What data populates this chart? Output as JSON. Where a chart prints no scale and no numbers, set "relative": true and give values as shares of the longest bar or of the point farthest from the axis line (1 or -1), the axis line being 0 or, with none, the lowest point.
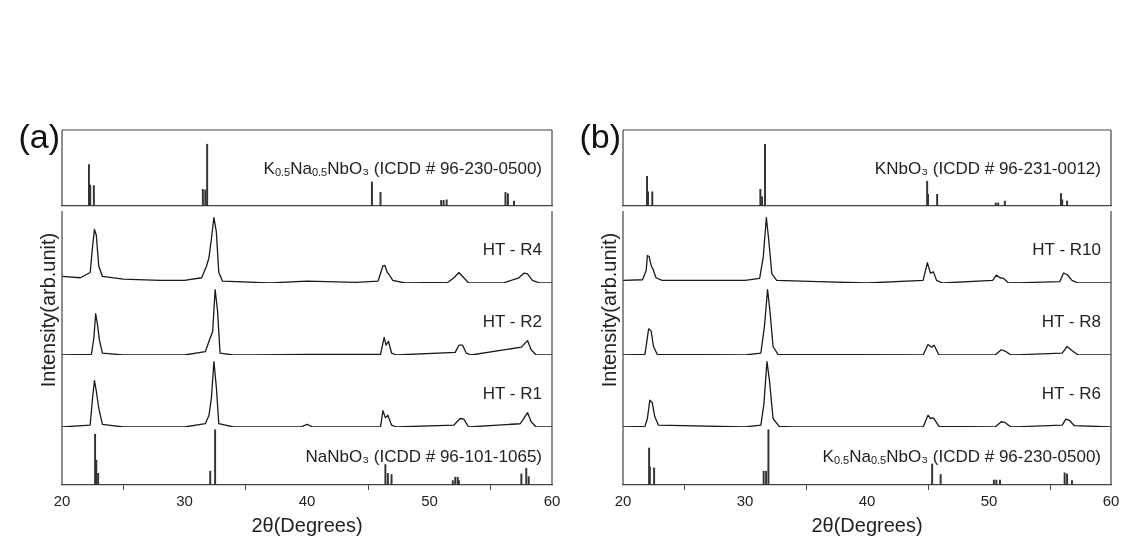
{
  "chart_data": [
    {
      "type": "bar",
      "title": "(a)",
      "relative": true,
      "xlim": [
        20,
        60
      ],
      "tick_labels": false,
      "x": [
        22.2,
        22.3,
        22.6,
        31.5,
        31.7,
        31.85,
        45.3,
        46.0,
        50.95,
        51.15,
        51.4,
        56.2,
        56.4,
        56.9
      ],
      "series": [
        {
          "name": "K$_{0.5}$Na$_{0.5}$NbO₃ (ICDD # 96-230-0500)",
          "color": "#333333",
          "values": [
            0.67,
            0.34,
            0.33,
            0.27,
            0.26,
            1.0,
            0.39,
            0.22,
            0.09,
            0.09,
            0.1,
            0.22,
            0.2,
            0.08
          ]
        }
      ]
    },
    {
      "type": "line",
      "relative": true,
      "xlim": [
        20,
        60
      ],
      "tick_labels": false,
      "x": [
        20,
        21.5,
        22.3,
        22.5,
        22.65,
        22.8,
        23.0,
        23.3,
        25,
        28,
        30,
        31.4,
        31.8,
        32.0,
        32.2,
        32.4,
        32.6,
        32.8,
        33.1,
        37,
        40,
        44,
        45.8,
        46.2,
        46.35,
        46.55,
        46.7,
        47.0,
        48,
        51.5,
        52,
        52.4,
        52.8,
        53.2,
        56,
        57.3,
        57.7,
        58.0,
        58.4,
        59,
        60
      ],
      "series": [
        {
          "name": "HT - R4",
          "color": "#1a1a1a",
          "values": [
            0.1,
            0.08,
            0.16,
            0.57,
            0.82,
            0.73,
            0.26,
            0.1,
            0.06,
            0.04,
            0.04,
            0.08,
            0.26,
            0.39,
            0.68,
            1.0,
            0.78,
            0.16,
            0.03,
            0.0,
            0.03,
            0.01,
            0.03,
            0.26,
            0.27,
            0.16,
            0.13,
            0.04,
            0.0,
            0.01,
            0.08,
            0.16,
            0.08,
            0.0,
            0.0,
            0.08,
            0.15,
            0.14,
            0.04,
            0.0,
            0.0
          ]
        }
      ]
    },
    {
      "type": "line",
      "relative": true,
      "xlim": [
        20,
        60
      ],
      "tick_labels": false,
      "ylabel": "Intensity(arb.unit)",
      "x": [
        20,
        22.4,
        22.6,
        22.75,
        22.9,
        23.05,
        23.3,
        25,
        30,
        31.7,
        32.0,
        32.3,
        32.5,
        32.7,
        32.9,
        34,
        40,
        46.0,
        46.3,
        46.45,
        46.65,
        46.9,
        47.3,
        52.1,
        52.4,
        52.7,
        53.0,
        53.4,
        57.5,
        58.0,
        58.3,
        58.7,
        60
      ],
      "series": [
        {
          "name": "HT - R2",
          "color": "#1a1a1a",
          "values": [
            0.0,
            0.01,
            0.26,
            0.63,
            0.46,
            0.23,
            0.03,
            0.0,
            0.0,
            0.05,
            0.21,
            0.36,
            1.0,
            0.67,
            0.03,
            0.0,
            0.01,
            0.01,
            0.27,
            0.15,
            0.21,
            0.03,
            0.0,
            0.04,
            0.15,
            0.15,
            0.03,
            0.0,
            0.12,
            0.22,
            0.08,
            0.0,
            0.0
          ]
        }
      ]
    },
    {
      "type": "line",
      "relative": true,
      "xlim": [
        20,
        60
      ],
      "tick_labels": false,
      "x": [
        20,
        22.3,
        22.5,
        22.65,
        22.8,
        23.0,
        23.3,
        25,
        30,
        31.7,
        32.0,
        32.2,
        32.4,
        32.6,
        32.8,
        34,
        39.5,
        40,
        40.5,
        46.0,
        46.2,
        46.4,
        46.6,
        46.9,
        47.3,
        52.0,
        52.5,
        52.8,
        53.2,
        57.4,
        57.6,
        58.0,
        58.3,
        58.7,
        60
      ],
      "series": [
        {
          "name": "HT - R1",
          "color": "#1a1a1a",
          "values": [
            0.0,
            0.03,
            0.45,
            0.71,
            0.55,
            0.29,
            0.04,
            0.0,
            0.0,
            0.05,
            0.18,
            0.45,
            1.0,
            0.61,
            0.05,
            0.0,
            0.0,
            0.04,
            0.0,
            0.0,
            0.25,
            0.14,
            0.18,
            0.03,
            0.0,
            0.03,
            0.13,
            0.12,
            0.0,
            0.05,
            0.1,
            0.22,
            0.08,
            0.0,
            0.0
          ]
        }
      ]
    },
    {
      "type": "bar",
      "relative": true,
      "xlim": [
        20,
        60
      ],
      "xticks": [
        20,
        30,
        40,
        50,
        60
      ],
      "tick_labels": "x",
      "xlabel": "2θ(Degrees)",
      "x": [
        22.7,
        22.8,
        22.95,
        32.1,
        32.5,
        46.4,
        46.6,
        46.9,
        51.9,
        52.1,
        52.3,
        52.4,
        57.5,
        57.9,
        58.1
      ],
      "series": [
        {
          "name": "NaNbO₃ (ICDD # 96-101-1065)",
          "color": "#333333",
          "values": [
            0.92,
            0.45,
            0.21,
            0.25,
            1.0,
            0.37,
            0.21,
            0.19,
            0.08,
            0.14,
            0.14,
            0.08,
            0.2,
            0.3,
            0.15
          ]
        }
      ]
    },
    {
      "type": "bar",
      "title": "(b)",
      "relative": true,
      "xlim": [
        20,
        60
      ],
      "tick_labels": false,
      "x": [
        21.97,
        22.05,
        22.4,
        31.26,
        31.4,
        31.64,
        44.93,
        45.0,
        45.75,
        50.55,
        50.75,
        51.3,
        55.9,
        56.0,
        56.4
      ],
      "series": [
        {
          "name": "KNbO₃ (ICDD # 96-231-0012)",
          "color": "#333333",
          "values": [
            0.48,
            0.23,
            0.23,
            0.27,
            0.15,
            1.0,
            0.4,
            0.19,
            0.19,
            0.05,
            0.05,
            0.08,
            0.2,
            0.1,
            0.08
          ]
        }
      ]
    },
    {
      "type": "line",
      "relative": true,
      "xlim": [
        20,
        60
      ],
      "tick_labels": false,
      "x": [
        20,
        21.6,
        21.9,
        22.0,
        22.15,
        22.3,
        22.5,
        22.7,
        23.2,
        30,
        31.2,
        31.5,
        31.75,
        31.95,
        32.2,
        32.6,
        36,
        40,
        44.6,
        44.95,
        45.2,
        45.45,
        45.7,
        46.2,
        50.3,
        50.6,
        50.9,
        51.2,
        51.6,
        55.8,
        56.1,
        56.4,
        56.8,
        57.3,
        60
      ],
      "series": [
        {
          "name": "HT - R10",
          "color": "#1a1a1a",
          "values": [
            0.04,
            0.05,
            0.19,
            0.42,
            0.4,
            0.27,
            0.19,
            0.08,
            0.04,
            0.04,
            0.07,
            0.4,
            1.0,
            0.65,
            0.14,
            0.04,
            0.02,
            0.0,
            0.04,
            0.31,
            0.15,
            0.17,
            0.04,
            0.0,
            0.04,
            0.12,
            0.08,
            0.07,
            0.0,
            0.02,
            0.15,
            0.13,
            0.04,
            0.0,
            0.0
          ]
        }
      ]
    },
    {
      "type": "line",
      "relative": true,
      "xlim": [
        20,
        60
      ],
      "tick_labels": false,
      "ylabel": "Intensity(arb.unit)",
      "x": [
        20,
        21.8,
        22.1,
        22.3,
        22.5,
        22.8,
        30,
        31.3,
        31.6,
        31.85,
        32.05,
        32.3,
        32.7,
        44.6,
        45.0,
        45.3,
        45.5,
        45.9,
        50.5,
        51.0,
        51.4,
        51.8,
        56.0,
        56.4,
        56.8,
        57.3,
        60
      ],
      "series": [
        {
          "name": "HT - R8",
          "color": "#1a1a1a",
          "values": [
            0.0,
            0.01,
            0.4,
            0.37,
            0.13,
            0.01,
            0.0,
            0.03,
            0.45,
            1.0,
            0.66,
            0.13,
            0.01,
            0.0,
            0.16,
            0.12,
            0.15,
            0.0,
            0.0,
            0.08,
            0.05,
            0.0,
            0.03,
            0.13,
            0.07,
            0.0,
            0.0
          ]
        }
      ]
    },
    {
      "type": "line",
      "relative": true,
      "xlim": [
        20,
        60
      ],
      "tick_labels": false,
      "x": [
        20,
        21.8,
        22.0,
        22.2,
        22.4,
        22.6,
        22.9,
        30,
        31.3,
        31.55,
        31.8,
        32.0,
        32.3,
        32.8,
        34,
        44.6,
        45.0,
        45.2,
        45.45,
        45.9,
        50.5,
        51.0,
        51.3,
        51.8,
        56.0,
        56.3,
        56.6,
        57.0,
        60
      ],
      "series": [
        {
          "name": "HT - R6",
          "color": "#1a1a1a",
          "values": [
            0.0,
            0.01,
            0.13,
            0.41,
            0.37,
            0.16,
            0.03,
            0.0,
            0.03,
            0.35,
            1.0,
            0.72,
            0.13,
            0.01,
            0.0,
            0.0,
            0.18,
            0.13,
            0.14,
            0.01,
            0.0,
            0.08,
            0.07,
            0.0,
            0.03,
            0.12,
            0.1,
            0.02,
            0.0
          ]
        }
      ]
    },
    {
      "type": "bar",
      "relative": true,
      "xlim": [
        20,
        60
      ],
      "xticks": [
        20,
        30,
        40,
        50,
        60
      ],
      "tick_labels": "x",
      "xlabel": "2θ(Degrees)",
      "x": [
        22.14,
        22.2,
        22.55,
        31.53,
        31.73,
        31.92,
        45.34,
        46.04,
        50.4,
        50.6,
        50.9,
        56.2,
        56.4,
        56.8
      ],
      "series": [
        {
          "name": "K$_{0.5}$Na$_{0.5}$NbO₃ (ICDD # 96-230-0500)",
          "color": "#333333",
          "values": [
            0.67,
            0.33,
            0.31,
            0.25,
            0.25,
            1.0,
            0.38,
            0.19,
            0.09,
            0.09,
            0.09,
            0.22,
            0.2,
            0.08
          ]
        }
      ]
    }
  ]
}
